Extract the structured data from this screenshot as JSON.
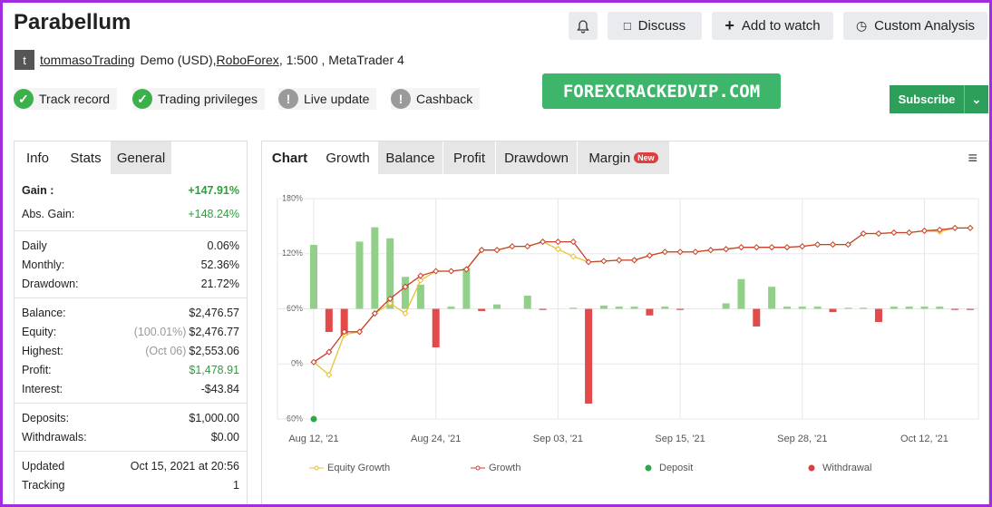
{
  "header": {
    "title": "Parabellum",
    "buttons": [
      "Discuss",
      "Add to watch",
      "Custom Analysis"
    ],
    "avatar": "t",
    "user": "tommasoTrading",
    "account": "Demo (USD),",
    "broker": "RoboForex",
    "details": ", 1:500 , MetaTrader 4",
    "badges": [
      {
        "label": "Track record",
        "ok": true
      },
      {
        "label": "Trading privileges",
        "ok": true
      },
      {
        "label": "Live update",
        "ok": false
      },
      {
        "label": "Cashback",
        "ok": false
      }
    ],
    "watermark": "FOREXCRACKEDVIP.COM",
    "subscribe": "Subscribe"
  },
  "stats": {
    "tabs": [
      "Info",
      "Stats",
      "General"
    ],
    "groups": [
      [
        {
          "label": "Gain :",
          "value": "+147.91%",
          "color": "#2e9e3e",
          "bold": true
        },
        {
          "label": "Abs. Gain:",
          "value": "+148.24%",
          "color": "#2e9e3e"
        }
      ],
      [
        {
          "label": "Daily",
          "value": "0.06%"
        },
        {
          "label": "Monthly:",
          "value": "52.36%"
        },
        {
          "label": "Drawdown:",
          "value": "21.72%"
        }
      ],
      [
        {
          "label": "Balance:",
          "value": "$2,476.57"
        },
        {
          "label": "Equity:",
          "note": "(100.01%)",
          "value": "$2,476.77"
        },
        {
          "label": "Highest:",
          "note": "(Oct 06)",
          "value": "$2,553.06"
        },
        {
          "label": "Profit:",
          "value": "$1,478.91",
          "color": "#2e9e3e"
        },
        {
          "label": "Interest:",
          "value": "-$43.84"
        }
      ],
      [
        {
          "label": "Deposits:",
          "value": "$1,000.00"
        },
        {
          "label": "Withdrawals:",
          "value": "$0.00"
        }
      ],
      [
        {
          "label": "Updated",
          "value": "Oct 15, 2021 at 20:56"
        },
        {
          "label": "Tracking",
          "value": "1"
        }
      ]
    ]
  },
  "chart_tabs": {
    "tabs": [
      "Chart",
      "Growth",
      "Balance",
      "Profit",
      "Drawdown",
      "Margin"
    ],
    "new": "New"
  },
  "chart_data": {
    "type": "line",
    "categories": [
      "Aug 12, '21",
      null,
      null,
      null,
      null,
      null,
      null,
      null,
      "Aug 24, '21",
      null,
      null,
      null,
      null,
      null,
      null,
      null,
      "Sep 03, '21",
      null,
      null,
      null,
      null,
      null,
      null,
      null,
      "Sep 15, '21",
      null,
      null,
      null,
      null,
      null,
      null,
      null,
      "Sep 28, '21",
      null,
      null,
      null,
      null,
      null,
      null,
      null,
      "Oct 12, '21",
      null,
      null,
      null
    ],
    "ylim": [
      -60,
      180
    ],
    "yticks": [
      {
        "value": -60,
        "label": "-60%"
      },
      {
        "value": 0,
        "label": "0%"
      },
      {
        "value": 60,
        "label": "60%"
      },
      {
        "value": 120,
        "label": "120%"
      },
      {
        "value": 180,
        "label": "180%"
      }
    ],
    "y2lim": [
      -100,
      100
    ],
    "grid": true,
    "series": [
      {
        "name": "Equity Growth",
        "type": "line",
        "color": "#e8c23a",
        "values": [
          2,
          -12,
          32,
          35,
          55,
          66,
          55,
          91,
          101,
          101,
          103,
          124,
          124,
          128,
          128,
          133,
          125,
          117,
          111,
          112,
          113,
          113,
          118,
          122,
          122,
          122,
          124,
          125,
          127,
          127,
          127,
          127,
          128,
          130,
          130,
          130,
          142,
          142,
          143,
          143,
          145,
          144,
          148,
          148
        ]
      },
      {
        "name": "Growth",
        "type": "line",
        "color": "#c9402b",
        "values": [
          2,
          13,
          35,
          35,
          55,
          71,
          84,
          96,
          101,
          101,
          103,
          124,
          124,
          128,
          128,
          133,
          133,
          133,
          111,
          112,
          113,
          113,
          118,
          122,
          122,
          122,
          124,
          125,
          127,
          127,
          127,
          127,
          128,
          130,
          130,
          130,
          142,
          142,
          143,
          143,
          145,
          146,
          148,
          148
        ]
      },
      {
        "name": "Deposit",
        "type": "dot",
        "color": "#2fa84a",
        "values": [
          -60,
          null,
          null,
          null,
          null,
          null,
          null,
          null,
          null,
          null,
          null,
          null,
          null,
          null,
          null,
          null,
          null,
          null,
          null,
          null,
          null,
          null,
          null,
          null,
          null,
          null,
          null,
          null,
          null,
          null,
          null,
          null,
          null,
          null,
          null,
          null,
          null,
          null,
          null,
          null,
          null,
          null,
          null,
          null
        ]
      },
      {
        "name": "Withdrawal",
        "type": "dot",
        "color": "#e03e3e",
        "values": [
          null,
          null,
          null,
          null,
          null,
          null,
          null,
          null,
          null,
          null,
          null,
          null,
          null,
          null,
          null,
          null,
          null,
          null,
          null,
          null,
          null,
          null,
          null,
          null,
          null,
          null,
          null,
          null,
          null,
          null,
          null,
          null,
          null,
          null,
          null,
          null,
          null,
          null,
          null,
          null,
          null,
          null,
          null,
          null
        ]
      },
      {
        "type": "bar",
        "axis": "y2",
        "color": "#92d08a",
        "negative_color": "#e34b4b",
        "values": [
          58,
          -21,
          -24,
          61,
          74,
          64,
          29,
          22,
          -35,
          2,
          37,
          -2,
          4,
          0,
          12,
          -1,
          0,
          1,
          -86,
          3,
          2,
          2,
          -6,
          2,
          -1,
          0,
          0,
          5,
          27,
          -16,
          20,
          2,
          2,
          2,
          -3,
          1,
          1,
          -12,
          2,
          2,
          2,
          2,
          -1,
          -1
        ]
      }
    ]
  }
}
